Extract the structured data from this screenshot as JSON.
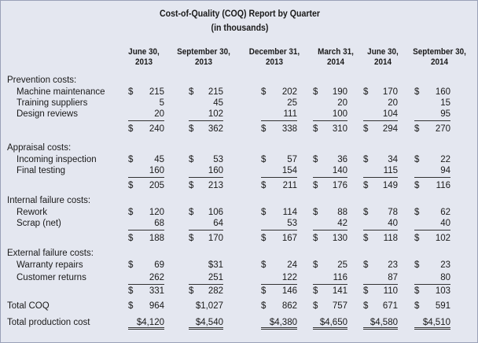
{
  "title": "Cost-of-Quality (COQ) Report by Quarter",
  "subtitle": "(in thousands)",
  "columns": [
    {
      "line1": "June 30,",
      "line2": "2013"
    },
    {
      "line1": "September 30,",
      "line2": "2013"
    },
    {
      "line1": "December 31,",
      "line2": "2013"
    },
    {
      "line1": "March 31,",
      "line2": "2014"
    },
    {
      "line1": "June 30,",
      "line2": "2014"
    },
    {
      "line1": "September 30,",
      "line2": "2014"
    }
  ],
  "rows": [
    {
      "label": "Prevention costs:"
    },
    {
      "label": "Machine maintenance",
      "cells": [
        {
          "cur": "$",
          "num": "215"
        },
        {
          "cur": "$",
          "num": "215"
        },
        {
          "cur": "$",
          "num": "202"
        },
        {
          "cur": "$",
          "num": "190"
        },
        {
          "cur": "$",
          "num": "170"
        },
        {
          "cur": "$",
          "num": "160"
        }
      ]
    },
    {
      "label": "Training suppliers",
      "cells": [
        {
          "cur": "",
          "num": "5"
        },
        {
          "cur": "",
          "num": "45"
        },
        {
          "cur": "",
          "num": "25"
        },
        {
          "cur": "",
          "num": "20"
        },
        {
          "cur": "",
          "num": "20"
        },
        {
          "cur": "",
          "num": "15"
        }
      ]
    },
    {
      "label": "Design reviews",
      "cells": [
        {
          "cur": "",
          "num": "20"
        },
        {
          "cur": "",
          "num": "102"
        },
        {
          "cur": "",
          "num": "111"
        },
        {
          "cur": "",
          "num": "100"
        },
        {
          "cur": "",
          "num": "104"
        },
        {
          "cur": "",
          "num": "95"
        }
      ]
    },
    {
      "label": "",
      "cells": [
        {
          "cur": "$",
          "num": "240"
        },
        {
          "cur": "$",
          "num": "362"
        },
        {
          "cur": "$",
          "num": "338"
        },
        {
          "cur": "$",
          "num": "310"
        },
        {
          "cur": "$",
          "num": "294"
        },
        {
          "cur": "$",
          "num": "270"
        }
      ]
    },
    {
      "label": "Appraisal costs:"
    },
    {
      "label": "Incoming inspection",
      "cells": [
        {
          "cur": "$",
          "num": "45"
        },
        {
          "cur": "$",
          "num": "53"
        },
        {
          "cur": "$",
          "num": "57"
        },
        {
          "cur": "$",
          "num": "36"
        },
        {
          "cur": "$",
          "num": "34"
        },
        {
          "cur": "$",
          "num": "22"
        }
      ]
    },
    {
      "label": "Final testing",
      "cells": [
        {
          "cur": "",
          "num": "160"
        },
        {
          "cur": "",
          "num": "160"
        },
        {
          "cur": "",
          "num": "154"
        },
        {
          "cur": "",
          "num": "140"
        },
        {
          "cur": "",
          "num": "115"
        },
        {
          "cur": "",
          "num": "94"
        }
      ]
    },
    {
      "label": "",
      "cells": [
        {
          "cur": "$",
          "num": "205"
        },
        {
          "cur": "$",
          "num": "213"
        },
        {
          "cur": "$",
          "num": "211"
        },
        {
          "cur": "$",
          "num": "176"
        },
        {
          "cur": "$",
          "num": "149"
        },
        {
          "cur": "$",
          "num": "116"
        }
      ]
    },
    {
      "label": "Internal failure costs:"
    },
    {
      "label": "Rework",
      "cells": [
        {
          "cur": "$",
          "num": "120"
        },
        {
          "cur": "$",
          "num": "106"
        },
        {
          "cur": "$",
          "num": "114"
        },
        {
          "cur": "$",
          "num": "88"
        },
        {
          "cur": "$",
          "num": "78"
        },
        {
          "cur": "$",
          "num": "62"
        }
      ]
    },
    {
      "label": "Scrap (net)",
      "cells": [
        {
          "cur": "",
          "num": "68"
        },
        {
          "cur": "",
          "num": "64"
        },
        {
          "cur": "",
          "num": "53"
        },
        {
          "cur": "",
          "num": "42"
        },
        {
          "cur": "",
          "num": "40"
        },
        {
          "cur": "",
          "num": "40"
        }
      ]
    },
    {
      "label": "",
      "cells": [
        {
          "cur": "$",
          "num": "188"
        },
        {
          "cur": "$",
          "num": "170"
        },
        {
          "cur": "$",
          "num": "167"
        },
        {
          "cur": "$",
          "num": "130"
        },
        {
          "cur": "$",
          "num": "118"
        },
        {
          "cur": "$",
          "num": "102"
        }
      ]
    },
    {
      "label": "External failure costs:"
    },
    {
      "label": "Warranty repairs",
      "cells": [
        {
          "cur": "$",
          "num": "69"
        },
        {
          "cur": "",
          "num": "$31"
        },
        {
          "cur": "$",
          "num": "24"
        },
        {
          "cur": "$",
          "num": "25"
        },
        {
          "cur": "$",
          "num": "23"
        },
        {
          "cur": "$",
          "num": "23"
        }
      ]
    },
    {
      "label": "Customer returns",
      "cells": [
        {
          "cur": "",
          "num": "262"
        },
        {
          "cur": "",
          "num": "251"
        },
        {
          "cur": "",
          "num": "122"
        },
        {
          "cur": "",
          "num": "116"
        },
        {
          "cur": "",
          "num": "87"
        },
        {
          "cur": "",
          "num": "80"
        }
      ]
    },
    {
      "label": "",
      "cells": [
        {
          "cur": "$",
          "num": "331"
        },
        {
          "cur": "$",
          "num": "282"
        },
        {
          "cur": "$",
          "num": "146"
        },
        {
          "cur": "$",
          "num": "141"
        },
        {
          "cur": "$",
          "num": "110"
        },
        {
          "cur": "$",
          "num": "103"
        }
      ]
    },
    {
      "label": "Total COQ",
      "cells": [
        {
          "cur": "$",
          "num": "964"
        },
        {
          "cur": "",
          "num": "$1,027"
        },
        {
          "cur": "$",
          "num": "862"
        },
        {
          "cur": "$",
          "num": "757"
        },
        {
          "cur": "$",
          "num": "671"
        },
        {
          "cur": "$",
          "num": "591"
        }
      ]
    },
    {
      "label": "Total production cost",
      "cells": [
        {
          "cur": "",
          "num": "$4,120"
        },
        {
          "cur": "",
          "num": "$4,540"
        },
        {
          "cur": "",
          "num": "$4,380"
        },
        {
          "cur": "",
          "num": "$4,650"
        },
        {
          "cur": "",
          "num": "$4,580"
        },
        {
          "cur": "",
          "num": "$4,510"
        }
      ]
    }
  ]
}
